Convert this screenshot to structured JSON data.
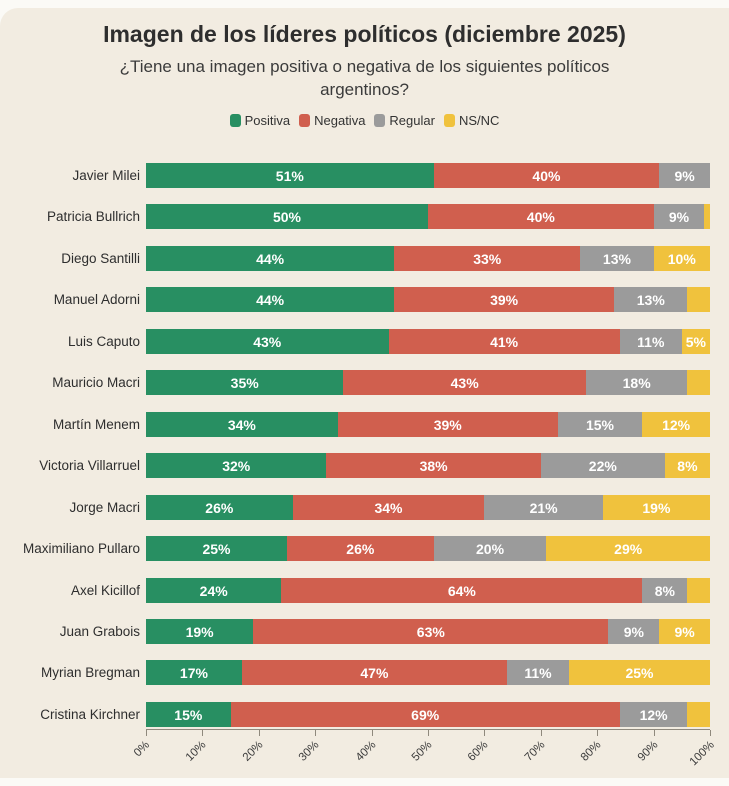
{
  "header": {
    "title": "Imagen de los líderes políticos (diciembre 2025)",
    "subtitle": "¿Tiene una imagen positiva o negativa de los siguientes políticos argentinos?"
  },
  "legend": [
    {
      "key": "positiva",
      "label": "Positiva",
      "color": "#288f62"
    },
    {
      "key": "negativa",
      "label": "Negativa",
      "color": "#d05f4e"
    },
    {
      "key": "regular",
      "label": "Regular",
      "color": "#9b9b9b"
    },
    {
      "key": "nsnc",
      "label": "NS/NC",
      "color": "#f0c23d"
    }
  ],
  "colors": {
    "page_background": "#fbfaf6",
    "panel_background": "#f2ece1",
    "positiva": "#288f62",
    "negativa": "#d05f4e",
    "regular": "#9b9b9b",
    "nsnc": "#f0c23d",
    "title_text": "#2e2e2e",
    "axis": "#8f897d"
  },
  "chart_data": {
    "type": "bar",
    "orientation": "horizontal",
    "stacked": true,
    "unit": "%",
    "xlim": [
      0,
      100
    ],
    "grid": false,
    "legend_position": "top",
    "x_ticks": [
      "0%",
      "10%",
      "20%",
      "30%",
      "40%",
      "50%",
      "60%",
      "70%",
      "80%",
      "90%",
      "100%"
    ],
    "series_order": [
      "positiva",
      "negativa",
      "regular",
      "nsnc"
    ],
    "series_names": {
      "positiva": "Positiva",
      "negativa": "Negativa",
      "regular": "Regular",
      "nsnc": "NS/NC"
    },
    "series_colors": {
      "positiva": "#288f62",
      "negativa": "#d05f4e",
      "regular": "#9b9b9b",
      "nsnc": "#f0c23d"
    },
    "label_min_percent": 5,
    "categories": [
      "Javier Milei",
      "Patricia Bullrich",
      "Diego Santilli",
      "Manuel Adorni",
      "Luis Caputo",
      "Mauricio Macri",
      "Martín Menem",
      "Victoria Villarruel",
      "Jorge Macri",
      "Maximiliano Pullaro",
      "Axel Kicillof",
      "Juan Grabois",
      "Myrian Bregman",
      "Cristina Kirchner"
    ],
    "rows": [
      {
        "name": "Javier Milei",
        "values": {
          "positiva": 51,
          "negativa": 40,
          "regular": 9,
          "nsnc": 0
        }
      },
      {
        "name": "Patricia Bullrich",
        "values": {
          "positiva": 50,
          "negativa": 40,
          "regular": 9,
          "nsnc": 1
        }
      },
      {
        "name": "Diego Santilli",
        "values": {
          "positiva": 44,
          "negativa": 33,
          "regular": 13,
          "nsnc": 10
        }
      },
      {
        "name": "Manuel Adorni",
        "values": {
          "positiva": 44,
          "negativa": 39,
          "regular": 13,
          "nsnc": 4
        }
      },
      {
        "name": "Luis Caputo",
        "values": {
          "positiva": 43,
          "negativa": 41,
          "regular": 11,
          "nsnc": 5
        }
      },
      {
        "name": "Mauricio Macri",
        "values": {
          "positiva": 35,
          "negativa": 43,
          "regular": 18,
          "nsnc": 4
        }
      },
      {
        "name": "Martín Menem",
        "values": {
          "positiva": 34,
          "negativa": 39,
          "regular": 15,
          "nsnc": 12
        }
      },
      {
        "name": "Victoria Villarruel",
        "values": {
          "positiva": 32,
          "negativa": 38,
          "regular": 22,
          "nsnc": 8
        }
      },
      {
        "name": "Jorge Macri",
        "values": {
          "positiva": 26,
          "negativa": 34,
          "regular": 21,
          "nsnc": 19
        }
      },
      {
        "name": "Maximiliano Pullaro",
        "values": {
          "positiva": 25,
          "negativa": 26,
          "regular": 20,
          "nsnc": 29
        }
      },
      {
        "name": "Axel Kicillof",
        "values": {
          "positiva": 24,
          "negativa": 64,
          "regular": 8,
          "nsnc": 4
        }
      },
      {
        "name": "Juan Grabois",
        "values": {
          "positiva": 19,
          "negativa": 63,
          "regular": 9,
          "nsnc": 9
        }
      },
      {
        "name": "Myrian Bregman",
        "values": {
          "positiva": 17,
          "negativa": 47,
          "regular": 11,
          "nsnc": 25
        }
      },
      {
        "name": "Cristina Kirchner",
        "values": {
          "positiva": 15,
          "negativa": 69,
          "regular": 12,
          "nsnc": 4
        }
      }
    ]
  }
}
